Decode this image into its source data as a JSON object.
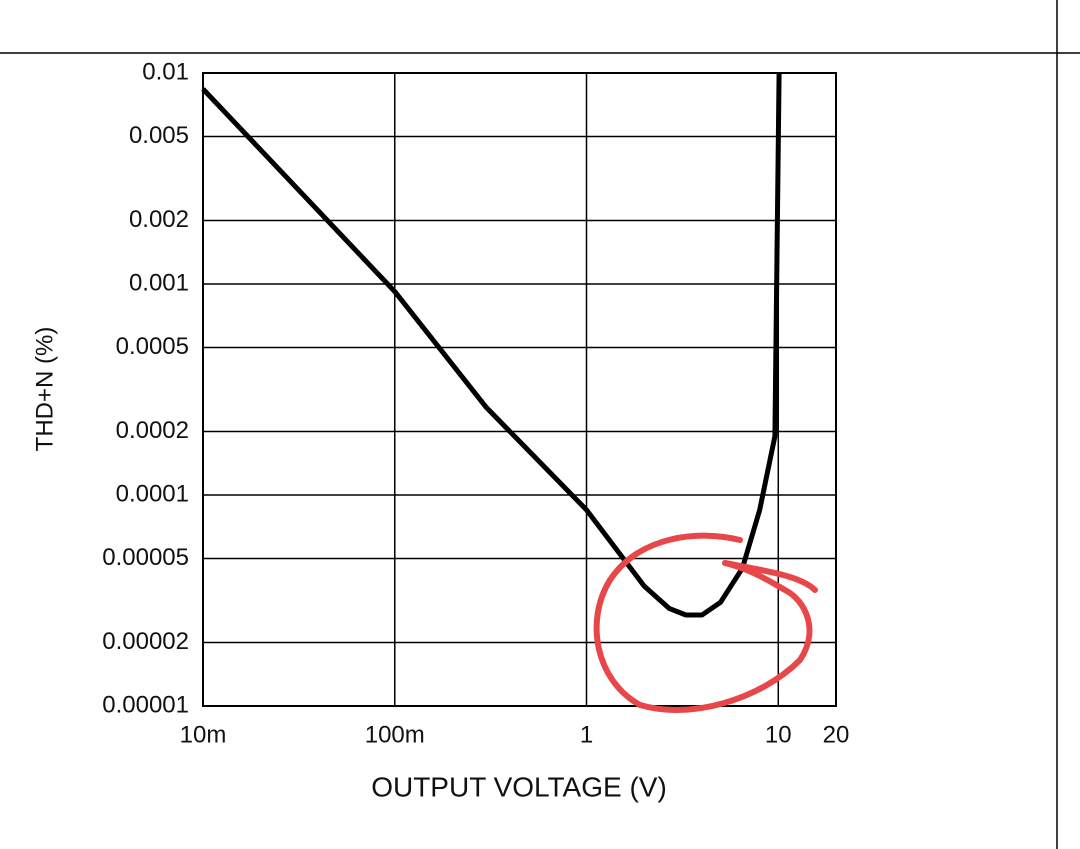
{
  "chart_data": {
    "type": "line",
    "xlabel": "OUTPUT VOLTAGE (V)",
    "ylabel": "THD+N (%)",
    "xscale": "log",
    "yscale": "log",
    "grid": true,
    "xlim": [
      0.01,
      20
    ],
    "ylim": [
      1e-05,
      0.01
    ],
    "xticks": [
      {
        "value": 0.01,
        "label": "10m"
      },
      {
        "value": 0.1,
        "label": "100m"
      },
      1,
      10,
      20
    ],
    "yticks": [
      1e-05,
      2e-05,
      5e-05,
      0.0001,
      0.0002,
      0.0005,
      0.001,
      0.002,
      0.005,
      0.01
    ],
    "series": [
      {
        "color": "#000000",
        "x": [
          0.01,
          0.1,
          0.3,
          1,
          2,
          2.7,
          3.3,
          4,
          5,
          6.5,
          8,
          9.6,
          10.1
        ],
        "values": [
          0.0084,
          0.00092,
          0.00026,
          8.5e-05,
          3.7e-05,
          2.9e-05,
          2.7e-05,
          2.7e-05,
          3.1e-05,
          4.5e-05,
          8.5e-05,
          0.00019,
          0.01
        ]
      }
    ]
  }
}
